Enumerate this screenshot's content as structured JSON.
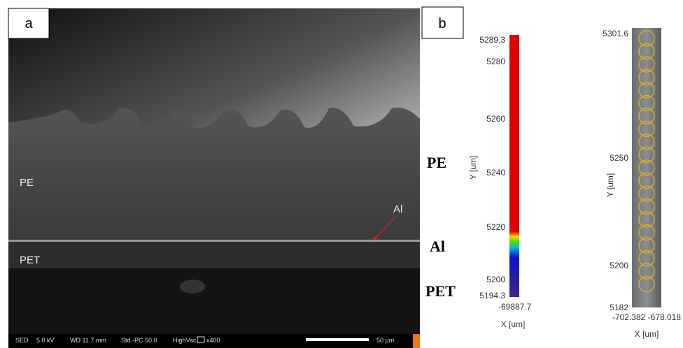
{
  "panel_a": {
    "label": "a",
    "annotations": [
      "PE",
      "Al",
      "PET"
    ],
    "info_bar": [
      "SED",
      "5.0 kV",
      "WD 11.7 mm",
      "Std.-PC 50.0",
      "HighVac.",
      "x400"
    ],
    "scale_bar": "50 µm"
  },
  "panel_b": {
    "label": "b",
    "layers": [
      "PE",
      "Al",
      "PET"
    ],
    "colorbar": {
      "ticks": [
        "5289.3",
        "5280",
        "5260",
        "5240",
        "5220",
        "5200",
        "5194.3"
      ],
      "x_ticks": "-69887.7",
      "x_label": "X [um]",
      "y_label": "Y [um]"
    },
    "image": {
      "y_ticks": [
        "5301.6",
        "5250",
        "5200",
        "5182"
      ],
      "x_ticks": "-702.382 -678.018",
      "x_label": "X [um]",
      "y_label": "Y [um]"
    }
  }
}
